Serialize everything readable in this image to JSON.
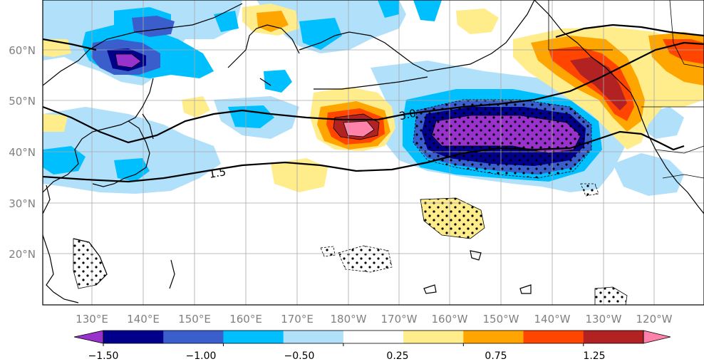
{
  "map": {
    "lat_labels": [
      "60°N",
      "50°N",
      "40°N",
      "30°N",
      "20°N"
    ],
    "lon_labels": [
      "130°E",
      "140°E",
      "150°E",
      "160°E",
      "170°E",
      "180°W",
      "170°W",
      "160°W",
      "150°W",
      "140°W",
      "130°W",
      "120°W"
    ],
    "contour_labels": [
      "3.0",
      "1.5"
    ]
  },
  "colorbar": {
    "tick_labels": [
      "−1.50",
      "−1.00",
      "−0.50",
      "0.25",
      "0.75",
      "1.25"
    ],
    "bins": [
      "#9932cc",
      "#00008b",
      "#3a5fcd",
      "#00bfff",
      "#b0e0fa",
      "#ffffff",
      "#ffec8b",
      "#ffa500",
      "#ff4500",
      "#b22222",
      "#ff82ab"
    ]
  },
  "colors": {
    "land_outline": "#000000",
    "grid": "#a9a9a9",
    "stipple": "#000000"
  }
}
